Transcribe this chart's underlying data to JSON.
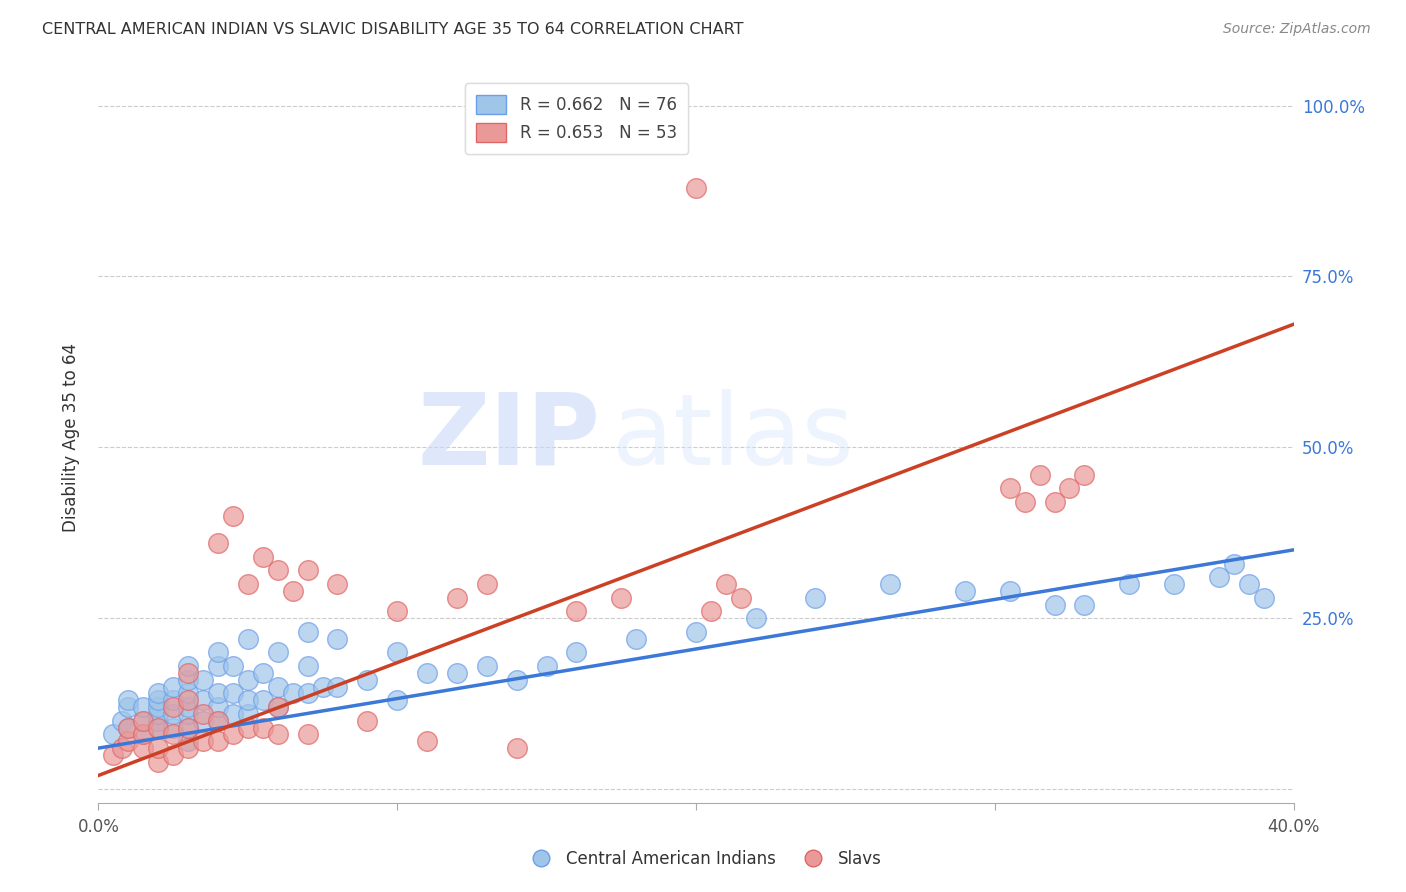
{
  "title": "CENTRAL AMERICAN INDIAN VS SLAVIC DISABILITY AGE 35 TO 64 CORRELATION CHART",
  "source": "Source: ZipAtlas.com",
  "ylabel": "Disability Age 35 to 64",
  "ytick_labels": [
    "",
    "25.0%",
    "50.0%",
    "75.0%",
    "100.0%"
  ],
  "ytick_positions": [
    0.0,
    0.25,
    0.5,
    0.75,
    1.0
  ],
  "xlim": [
    0.0,
    0.4
  ],
  "ylim": [
    -0.02,
    1.05
  ],
  "legend_label_blue": "Central American Indians",
  "legend_label_pink": "Slavs",
  "watermark_zip": "ZIP",
  "watermark_atlas": "atlas",
  "blue_color": "#9fc5e8",
  "pink_color": "#ea9999",
  "blue_edge": "#6d9eeb",
  "pink_edge": "#e06666",
  "trendline_blue": "#3c78d8",
  "trendline_pink": "#cc4125",
  "blue_scatter_x": [
    0.005,
    0.008,
    0.01,
    0.01,
    0.01,
    0.015,
    0.015,
    0.015,
    0.02,
    0.02,
    0.02,
    0.02,
    0.02,
    0.02,
    0.025,
    0.025,
    0.025,
    0.025,
    0.03,
    0.03,
    0.03,
    0.03,
    0.03,
    0.03,
    0.03,
    0.035,
    0.035,
    0.035,
    0.04,
    0.04,
    0.04,
    0.04,
    0.04,
    0.045,
    0.045,
    0.045,
    0.05,
    0.05,
    0.05,
    0.05,
    0.055,
    0.055,
    0.06,
    0.06,
    0.06,
    0.065,
    0.07,
    0.07,
    0.07,
    0.075,
    0.08,
    0.08,
    0.09,
    0.1,
    0.1,
    0.11,
    0.12,
    0.13,
    0.14,
    0.15,
    0.16,
    0.18,
    0.2,
    0.22,
    0.24,
    0.265,
    0.29,
    0.305,
    0.32,
    0.33,
    0.345,
    0.36,
    0.375,
    0.38,
    0.385,
    0.39
  ],
  "blue_scatter_y": [
    0.08,
    0.1,
    0.09,
    0.12,
    0.13,
    0.08,
    0.1,
    0.12,
    0.09,
    0.1,
    0.11,
    0.12,
    0.13,
    0.14,
    0.09,
    0.11,
    0.13,
    0.15,
    0.07,
    0.09,
    0.11,
    0.12,
    0.14,
    0.16,
    0.18,
    0.1,
    0.13,
    0.16,
    0.1,
    0.12,
    0.14,
    0.18,
    0.2,
    0.11,
    0.14,
    0.18,
    0.11,
    0.13,
    0.16,
    0.22,
    0.13,
    0.17,
    0.12,
    0.15,
    0.2,
    0.14,
    0.14,
    0.18,
    0.23,
    0.15,
    0.15,
    0.22,
    0.16,
    0.13,
    0.2,
    0.17,
    0.17,
    0.18,
    0.16,
    0.18,
    0.2,
    0.22,
    0.23,
    0.25,
    0.28,
    0.3,
    0.29,
    0.29,
    0.27,
    0.27,
    0.3,
    0.3,
    0.31,
    0.33,
    0.3,
    0.28
  ],
  "pink_scatter_x": [
    0.005,
    0.008,
    0.01,
    0.01,
    0.015,
    0.015,
    0.015,
    0.02,
    0.02,
    0.02,
    0.025,
    0.025,
    0.025,
    0.03,
    0.03,
    0.03,
    0.03,
    0.035,
    0.035,
    0.04,
    0.04,
    0.04,
    0.045,
    0.045,
    0.05,
    0.05,
    0.055,
    0.055,
    0.06,
    0.06,
    0.06,
    0.065,
    0.07,
    0.07,
    0.08,
    0.09,
    0.1,
    0.11,
    0.12,
    0.13,
    0.14,
    0.16,
    0.175,
    0.2,
    0.205,
    0.21,
    0.215,
    0.305,
    0.31,
    0.315,
    0.32,
    0.325,
    0.33
  ],
  "pink_scatter_y": [
    0.05,
    0.06,
    0.07,
    0.09,
    0.06,
    0.08,
    0.1,
    0.04,
    0.06,
    0.09,
    0.05,
    0.08,
    0.12,
    0.06,
    0.09,
    0.13,
    0.17,
    0.07,
    0.11,
    0.07,
    0.1,
    0.36,
    0.08,
    0.4,
    0.09,
    0.3,
    0.09,
    0.34,
    0.08,
    0.12,
    0.32,
    0.29,
    0.08,
    0.32,
    0.3,
    0.1,
    0.26,
    0.07,
    0.28,
    0.3,
    0.06,
    0.26,
    0.28,
    0.88,
    0.26,
    0.3,
    0.28,
    0.44,
    0.42,
    0.46,
    0.42,
    0.44,
    0.46
  ],
  "blue_trendline_x": [
    0.0,
    0.4
  ],
  "blue_trendline_y": [
    0.06,
    0.35
  ],
  "pink_trendline_x": [
    0.0,
    0.4
  ],
  "pink_trendline_y": [
    0.02,
    0.68
  ],
  "xtick_positions": [
    0.0,
    0.1,
    0.2,
    0.3,
    0.4
  ],
  "xtick_major_labels": [
    "0.0%",
    "",
    "",
    "",
    "40.0%"
  ]
}
